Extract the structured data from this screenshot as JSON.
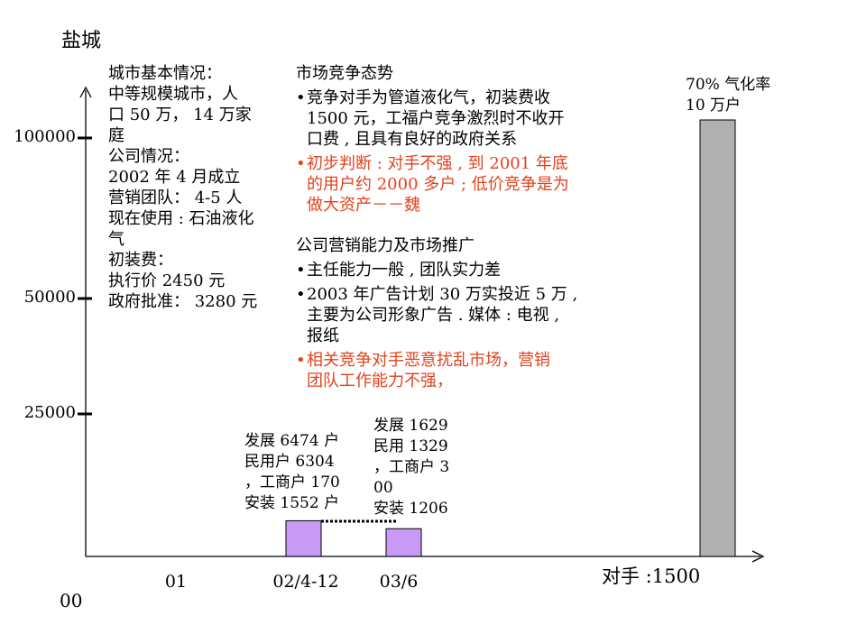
{
  "city": "盐城",
  "city_info": {
    "heading": "城市基本情况：",
    "lines": [
      "中等规模城市，人",
      "口 50 万， 14 万家",
      "庭",
      "公司情况：",
      "2002 年 4 月成立",
      "营销团队： 4-5 人",
      "现在使用 : 石油液化",
      "气",
      "初装费：",
      "执行价 2450 元",
      "政府批准： 3280 元"
    ]
  },
  "market": {
    "heading": "市场竞争态势",
    "bullets": [
      {
        "lines": [
          "竞争对手为管道液化气，初装费收",
          "1500 元，工福户竞争激烈时不收开",
          "口费 , 且具有良好的政府关系"
        ],
        "red": false
      },
      {
        "lines": [
          "初步判断 : 对手不强 , 到 2001 年底",
          "的用户约 2000 多户 ; 低价竞争是为",
          "做大资产－－魏"
        ],
        "red": true
      }
    ]
  },
  "marketing": {
    "heading": "公司营销能力及市场推广",
    "bullets": [
      {
        "lines": [
          "主任能力一般 , 团队实力差"
        ],
        "red": false
      },
      {
        "lines": [
          "2003 年广告计划 30 万实投近 5 万 ,",
          "主要为公司形象广告 . 媒体 : 电视 ,",
          "报纸"
        ],
        "red": false
      },
      {
        "lines": [
          "相关竞争对手恶意扰乱市场，营销",
          "团队工作能力不强，"
        ],
        "red": true
      }
    ]
  },
  "annotations": {
    "bar1": [
      "发展 6474 户",
      "民用户 6304",
      "，工商户 170",
      "安装 1552 户"
    ],
    "bar2": [
      "发展 1629",
      "民用 1329",
      "，工商户 3",
      "00",
      "安装 1206"
    ],
    "bar3": [
      "70% 气化率",
      "10 万户"
    ]
  },
  "competitor_label": "对手 :1500",
  "origin_label": "00",
  "chart_data": {
    "type": "bar",
    "categories": [
      "01",
      "02/4-12",
      "03/6",
      ""
    ],
    "values": [
      0,
      1552,
      1206,
      100000
    ],
    "yticks": [
      {
        "label": "100000",
        "value": 100000
      },
      {
        "label": "50000",
        "value": 50000
      },
      {
        "label": "25000",
        "value": 25000
      }
    ],
    "colors": {
      "bar_purple": "#c99af5",
      "bar_gray": "#b0b0b0"
    },
    "dashed_connector": true
  }
}
